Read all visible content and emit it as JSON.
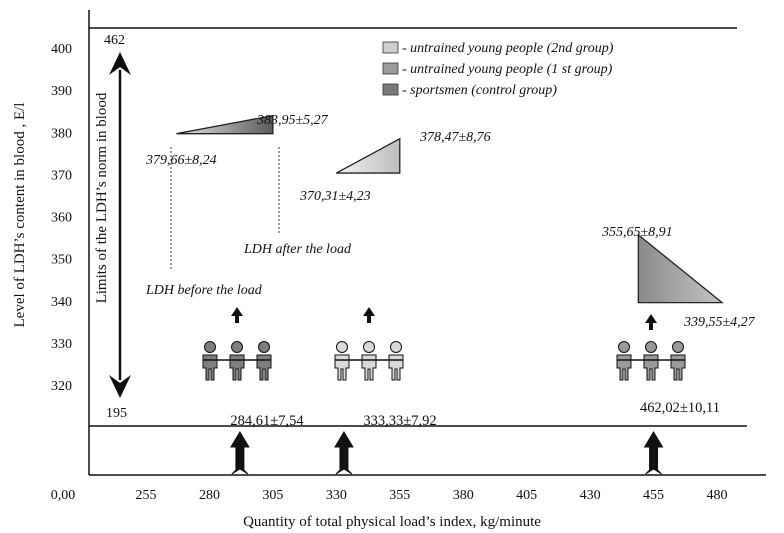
{
  "chart_data": {
    "type": "other",
    "title": "",
    "xlabel": "Quantity of total physical load’s index, kg/minute",
    "ylabel": "Level of LDH’s content in blood , E/l",
    "x_ticks": [
      "0,00",
      "255",
      "280",
      "305",
      "330",
      "355",
      "380",
      "405",
      "430",
      "455",
      "480"
    ],
    "y_ticks": [
      "320",
      "330",
      "340",
      "350",
      "360",
      "370",
      "380",
      "390",
      "400"
    ],
    "ylim": [
      315,
      405
    ],
    "norm_arrow": {
      "label": "Limits of the LDH’s norm in blood",
      "upper": "462",
      "lower": "195"
    },
    "legend": [
      {
        "label": "- untrained young people (2nd group)",
        "color": "#cfcfcf"
      },
      {
        "label": "- untrained young people (1 st group)",
        "color": "#9a9a9a"
      },
      {
        "label": "- sportsmen (control group)",
        "color": "#7a7a7a"
      }
    ],
    "groups": [
      {
        "name": "sportsmen (control group)",
        "x_from": 267,
        "x_to": 305,
        "before": 379.66,
        "after": 383.95,
        "before_label": "379,66±8,24",
        "after_label": "383,95±5,27",
        "load_label": "284,61±7,54",
        "load_x": 292,
        "color": "#6e6e6e"
      },
      {
        "name": "untrained young people (2nd group)",
        "x_from": 330,
        "x_to": 355,
        "before": 370.31,
        "after": 378.47,
        "before_label": "370,31±4,23",
        "after_label": "378,47±8,76",
        "load_label": "333,33±7,92",
        "load_x": 333,
        "color": "#d2d2d2"
      },
      {
        "name": "untrained young people (1 st group)",
        "x_from": 449,
        "x_to": 482,
        "before": 355.65,
        "after": 339.55,
        "before_label": "355,65±8,91",
        "after_label": "339,55±4,27",
        "load_label": "462,02±10,11",
        "load_x": 455,
        "color": "#9a9a9a"
      }
    ],
    "annotations": {
      "before": "LDH before the load",
      "after": "LDH after the load"
    }
  }
}
